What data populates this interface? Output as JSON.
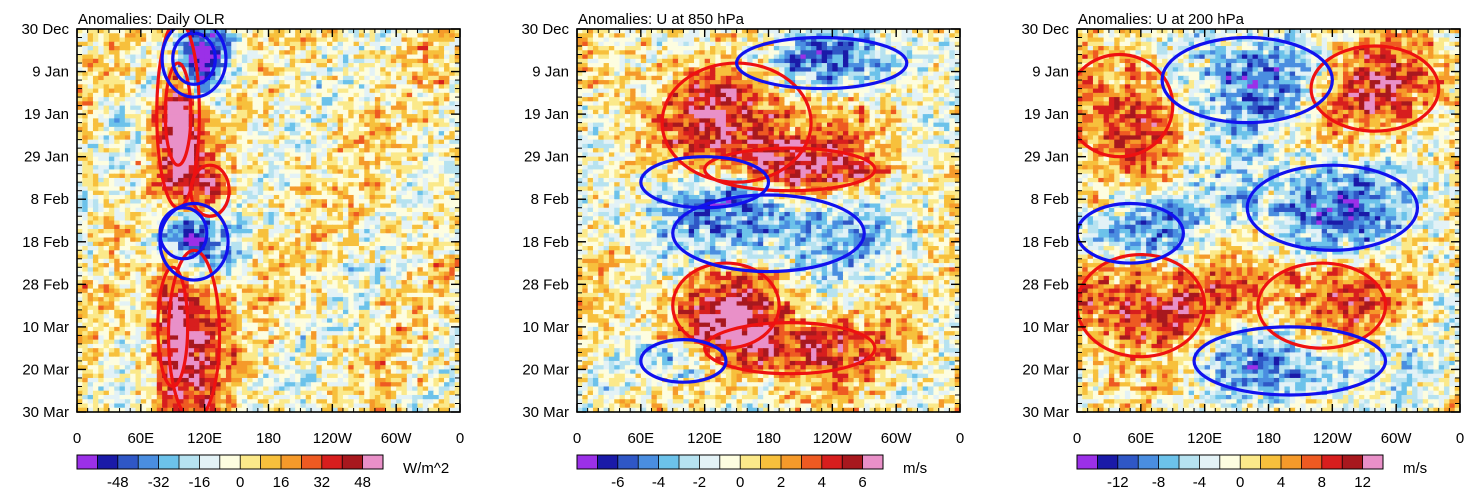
{
  "palette": [
    "#9b30e8",
    "#1a1aa8",
    "#2f57c6",
    "#4a8ee0",
    "#6cc2ea",
    "#b6e2f0",
    "#e3f2f6",
    "#fdfde0",
    "#fbe98a",
    "#f7c03c",
    "#f59a2a",
    "#ee5a22",
    "#d71e1e",
    "#a8181e",
    "#e990c8"
  ],
  "contour_colors": {
    "positive": "#ee1111",
    "negative": "#1111ee"
  },
  "chart_data": [
    {
      "type": "heatmap",
      "title": "Anomalies: Daily OLR",
      "units": "W/m^2",
      "x_tick_labels": [
        "0",
        "60E",
        "120E",
        "180",
        "120W",
        "60W",
        "0"
      ],
      "y_tick_labels": [
        "30 Dec",
        "9 Jan",
        "19 Jan",
        "29 Jan",
        "8 Feb",
        "18 Feb",
        "28 Feb",
        "10 Mar",
        "20 Mar",
        "30 Mar"
      ],
      "xlim": [
        0,
        360
      ],
      "ylim_days": [
        0,
        90
      ],
      "colorbar_levels": [
        -56,
        -48,
        -40,
        -32,
        -24,
        -16,
        -8,
        0,
        8,
        16,
        24,
        32,
        40,
        48,
        56
      ],
      "colorbar_tick_labels": [
        "-48",
        "-32",
        "-16",
        "0",
        "16",
        "32",
        "48"
      ],
      "positive_contours": [
        {
          "lon": 95,
          "day": 20,
          "rlon": 12,
          "rday": 12
        },
        {
          "lon": 95,
          "day": 20,
          "rlon": 20,
          "rday": 22
        },
        {
          "lon": 125,
          "day": 38,
          "rlon": 18,
          "rday": 6
        },
        {
          "lon": 90,
          "day": 70,
          "rlon": 14,
          "rday": 14
        },
        {
          "lon": 110,
          "day": 72,
          "rlon": 24,
          "rday": 20
        }
      ],
      "negative_contours": [
        {
          "lon": 110,
          "day": 7,
          "rlon": 20,
          "rday": 6
        },
        {
          "lon": 110,
          "day": 7,
          "rlon": 30,
          "rday": 9
        },
        {
          "lon": 100,
          "day": 48,
          "rlon": 22,
          "rday": 6
        },
        {
          "lon": 110,
          "day": 50,
          "rlon": 32,
          "rday": 9
        }
      ]
    },
    {
      "type": "heatmap",
      "title": "Anomalies: U at 850 hPa",
      "units": "m/s",
      "x_tick_labels": [
        "0",
        "60E",
        "120E",
        "180",
        "120W",
        "60W",
        "0"
      ],
      "y_tick_labels": [
        "30 Dec",
        "9 Jan",
        "19 Jan",
        "29 Jan",
        "8 Feb",
        "18 Feb",
        "28 Feb",
        "10 Mar",
        "20 Mar",
        "30 Mar"
      ],
      "xlim": [
        0,
        360
      ],
      "ylim_days": [
        0,
        90
      ],
      "colorbar_levels": [
        -7,
        -6,
        -5,
        -4,
        -3,
        -2,
        -1,
        0,
        1,
        2,
        3,
        4,
        5,
        6,
        7
      ],
      "colorbar_tick_labels": [
        "-6",
        "-4",
        "-2",
        "0",
        "2",
        "4",
        "6"
      ],
      "positive_contours": [
        {
          "lon": 150,
          "day": 22,
          "rlon": 70,
          "rday": 14
        },
        {
          "lon": 200,
          "day": 33,
          "rlon": 80,
          "rday": 5
        },
        {
          "lon": 140,
          "day": 65,
          "rlon": 50,
          "rday": 10
        },
        {
          "lon": 200,
          "day": 75,
          "rlon": 80,
          "rday": 6
        }
      ],
      "negative_contours": [
        {
          "lon": 230,
          "day": 8,
          "rlon": 80,
          "rday": 6
        },
        {
          "lon": 180,
          "day": 48,
          "rlon": 90,
          "rday": 9
        },
        {
          "lon": 120,
          "day": 36,
          "rlon": 60,
          "rday": 6
        },
        {
          "lon": 100,
          "day": 78,
          "rlon": 40,
          "rday": 5
        }
      ]
    },
    {
      "type": "heatmap",
      "title": "Anomalies: U at 200 hPa",
      "units": "m/s",
      "x_tick_labels": [
        "0",
        "60E",
        "120E",
        "180",
        "120W",
        "60W",
        "0"
      ],
      "y_tick_labels": [
        "30 Dec",
        "9 Jan",
        "19 Jan",
        "29 Jan",
        "8 Feb",
        "18 Feb",
        "28 Feb",
        "10 Mar",
        "20 Mar",
        "30 Mar"
      ],
      "xlim": [
        0,
        360
      ],
      "ylim_days": [
        0,
        90
      ],
      "colorbar_levels": [
        -14,
        -12,
        -10,
        -8,
        -6,
        -4,
        -2,
        0,
        2,
        4,
        6,
        8,
        10,
        12,
        14
      ],
      "colorbar_tick_labels": [
        "-12",
        "-8",
        "-4",
        "0",
        "4",
        "8",
        "12"
      ],
      "positive_contours": [
        {
          "lon": 40,
          "day": 18,
          "rlon": 50,
          "rday": 12
        },
        {
          "lon": 280,
          "day": 14,
          "rlon": 60,
          "rday": 10
        },
        {
          "lon": 60,
          "day": 65,
          "rlon": 60,
          "rday": 12
        },
        {
          "lon": 230,
          "day": 65,
          "rlon": 60,
          "rday": 10
        }
      ],
      "negative_contours": [
        {
          "lon": 160,
          "day": 12,
          "rlon": 80,
          "rday": 10
        },
        {
          "lon": 240,
          "day": 42,
          "rlon": 80,
          "rday": 10
        },
        {
          "lon": 50,
          "day": 48,
          "rlon": 50,
          "rday": 7
        },
        {
          "lon": 200,
          "day": 78,
          "rlon": 90,
          "rday": 8
        }
      ]
    }
  ]
}
